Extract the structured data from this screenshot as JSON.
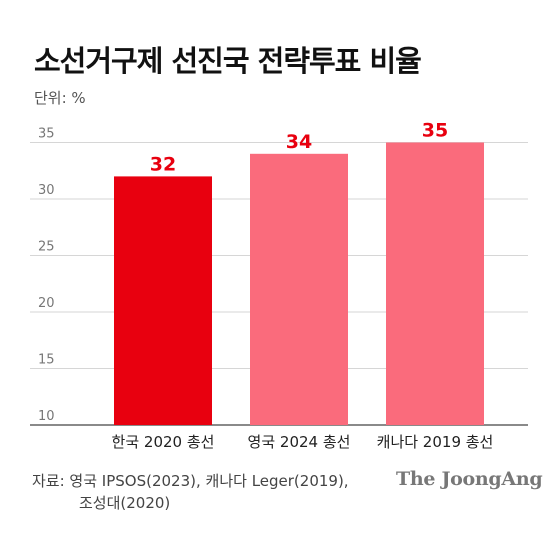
{
  "title": "소선거구제 선진국 전략투표 비율",
  "unit": "단위: %",
  "chart_data": {
    "type": "bar",
    "categories": [
      "한국 2020 총선",
      "영국 2024 총선",
      "캐나다 2019 총선"
    ],
    "values": [
      32,
      34,
      35
    ],
    "data_labels": [
      "32",
      "34",
      "35"
    ],
    "bar_colors": [
      "#e8000f",
      "#fa6b7c",
      "#fa6b7c"
    ],
    "label_color": "#e8000f",
    "ylim": [
      10,
      36
    ],
    "yticks": [
      10,
      15,
      20,
      25,
      30,
      35
    ],
    "ytick_labels": [
      "10",
      "15",
      "20",
      "25",
      "30",
      "35"
    ],
    "grid": true
  },
  "source": {
    "line1": "자료: 영국 IPSOS(2023), 캐나다 Leger(2019),",
    "line2": "조성대(2020)"
  },
  "logo": "The JoongAng"
}
